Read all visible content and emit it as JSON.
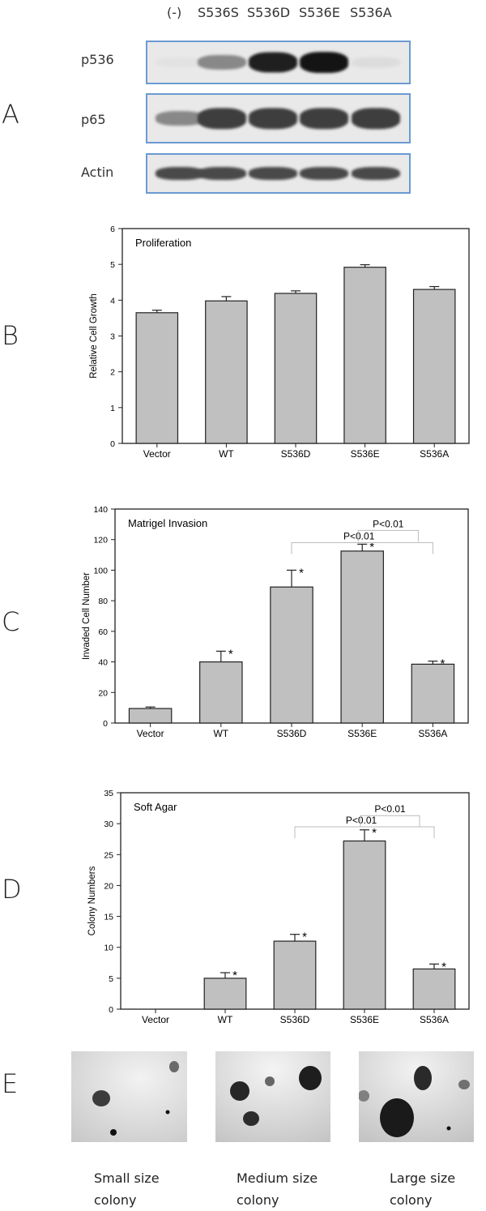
{
  "panel_letters": [
    "A",
    "B",
    "C",
    "D",
    "E"
  ],
  "western_blot": {
    "lanes": [
      "(-)",
      "S536S",
      "S536D",
      "S536E",
      "S536A"
    ],
    "rows": [
      "p536",
      "p65",
      "Actin"
    ],
    "band_intensity": {
      "p536": [
        0.02,
        0.45,
        0.95,
        1.0,
        0.05
      ],
      "p65": [
        0.45,
        0.8,
        0.8,
        0.8,
        0.8
      ],
      "Actin": [
        0.75,
        0.75,
        0.75,
        0.75,
        0.75
      ]
    },
    "border_color": "#6b9bd2"
  },
  "chart_data": [
    {
      "type": "bar",
      "title": "Proliferation",
      "ylabel": "Relative Cell Growth",
      "xlabel": "",
      "categories": [
        "Vector",
        "WT",
        "S536D",
        "S536E",
        "S536A"
      ],
      "values": [
        3.65,
        3.98,
        4.19,
        4.92,
        4.3
      ],
      "errors": [
        0.07,
        0.12,
        0.07,
        0.07,
        0.08
      ],
      "ylim": [
        0,
        6
      ],
      "yticks": [
        0,
        1,
        2,
        3,
        4,
        5,
        6
      ],
      "bar_color": "#c0c0c0",
      "grid": false
    },
    {
      "type": "bar",
      "title": "Matrigel Invasion",
      "ylabel": "Invaded Cell Number",
      "xlabel": "",
      "categories": [
        "Vector",
        "WT",
        "S536D",
        "S536E",
        "S536A"
      ],
      "values": [
        9.5,
        40,
        89,
        112.5,
        38.5
      ],
      "errors": [
        1,
        7,
        11,
        4.5,
        2
      ],
      "significance": [
        "",
        "*",
        "*",
        "*",
        "*"
      ],
      "comparisons": [
        {
          "from": "S536D",
          "to": "S536A",
          "label": "P<0.01",
          "level": 118
        },
        {
          "from": "S536E",
          "to": "S536A",
          "label": "P<0.01",
          "level": 126
        }
      ],
      "ylim": [
        0,
        140
      ],
      "yticks": [
        0,
        20,
        40,
        60,
        80,
        100,
        120,
        140
      ],
      "bar_color": "#c0c0c0",
      "grid": false
    },
    {
      "type": "bar",
      "title": "Soft Agar",
      "ylabel": "Colony Numbers",
      "xlabel": "",
      "categories": [
        "Vector",
        "WT",
        "S536D",
        "S536E",
        "S536A"
      ],
      "values": [
        0,
        5,
        11,
        27.2,
        6.5
      ],
      "errors": [
        0,
        0.9,
        1.1,
        1.8,
        0.8
      ],
      "significance": [
        "",
        "*",
        "*",
        "*",
        "*"
      ],
      "comparisons": [
        {
          "from": "S536D",
          "to": "S536A",
          "label": "P<0.01",
          "level": 29.5
        },
        {
          "from": "S536E",
          "to": "S536A",
          "label": "P<0.01",
          "level": 31.3
        }
      ],
      "ylim": [
        0,
        35
      ],
      "yticks": [
        0,
        5,
        10,
        15,
        20,
        25,
        30,
        35
      ],
      "bar_color": "#c0c0c0",
      "grid": false
    }
  ],
  "colony_images": [
    {
      "caption_line1": "Small size",
      "caption_line2": "colony"
    },
    {
      "caption_line1": "Medium size",
      "caption_line2": "colony"
    },
    {
      "caption_line1": "Large size",
      "caption_line2": "colony"
    }
  ]
}
